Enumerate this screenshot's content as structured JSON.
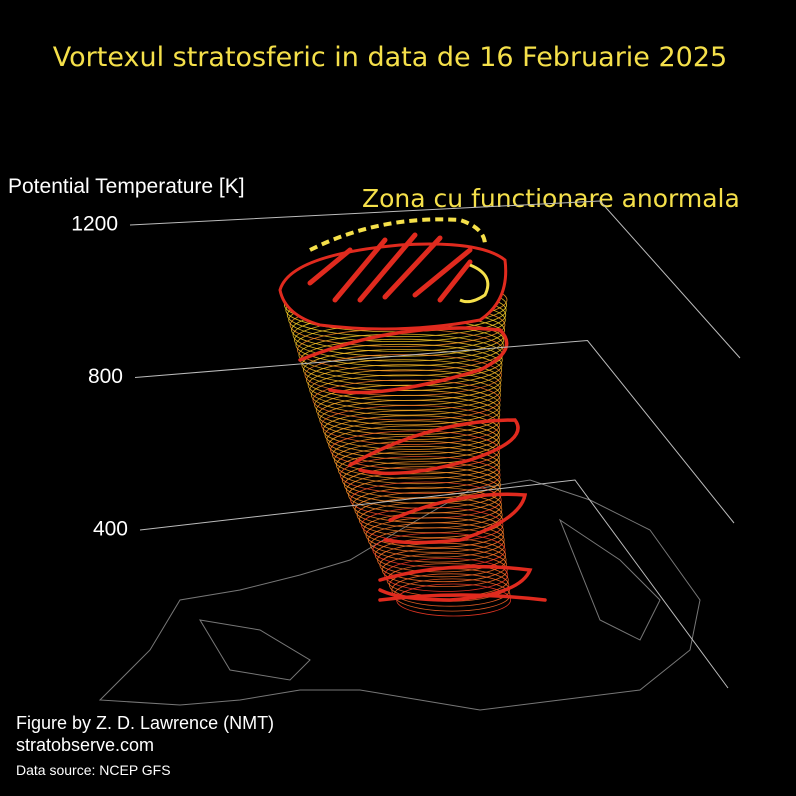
{
  "chart_data": {
    "type": "vortex-3d",
    "title": "Vortexul stratosferic in data de 16 Februarie 2025",
    "annotation": "Zona cu functionare anormala",
    "zlabel": "Potential Temperature [K]",
    "zticks": [
      1200,
      800,
      400
    ],
    "credit": "Figure by Z. D. Lawrence (NMT)",
    "website": "stratobserve.com",
    "source": "Data source: NCEP GFS"
  }
}
